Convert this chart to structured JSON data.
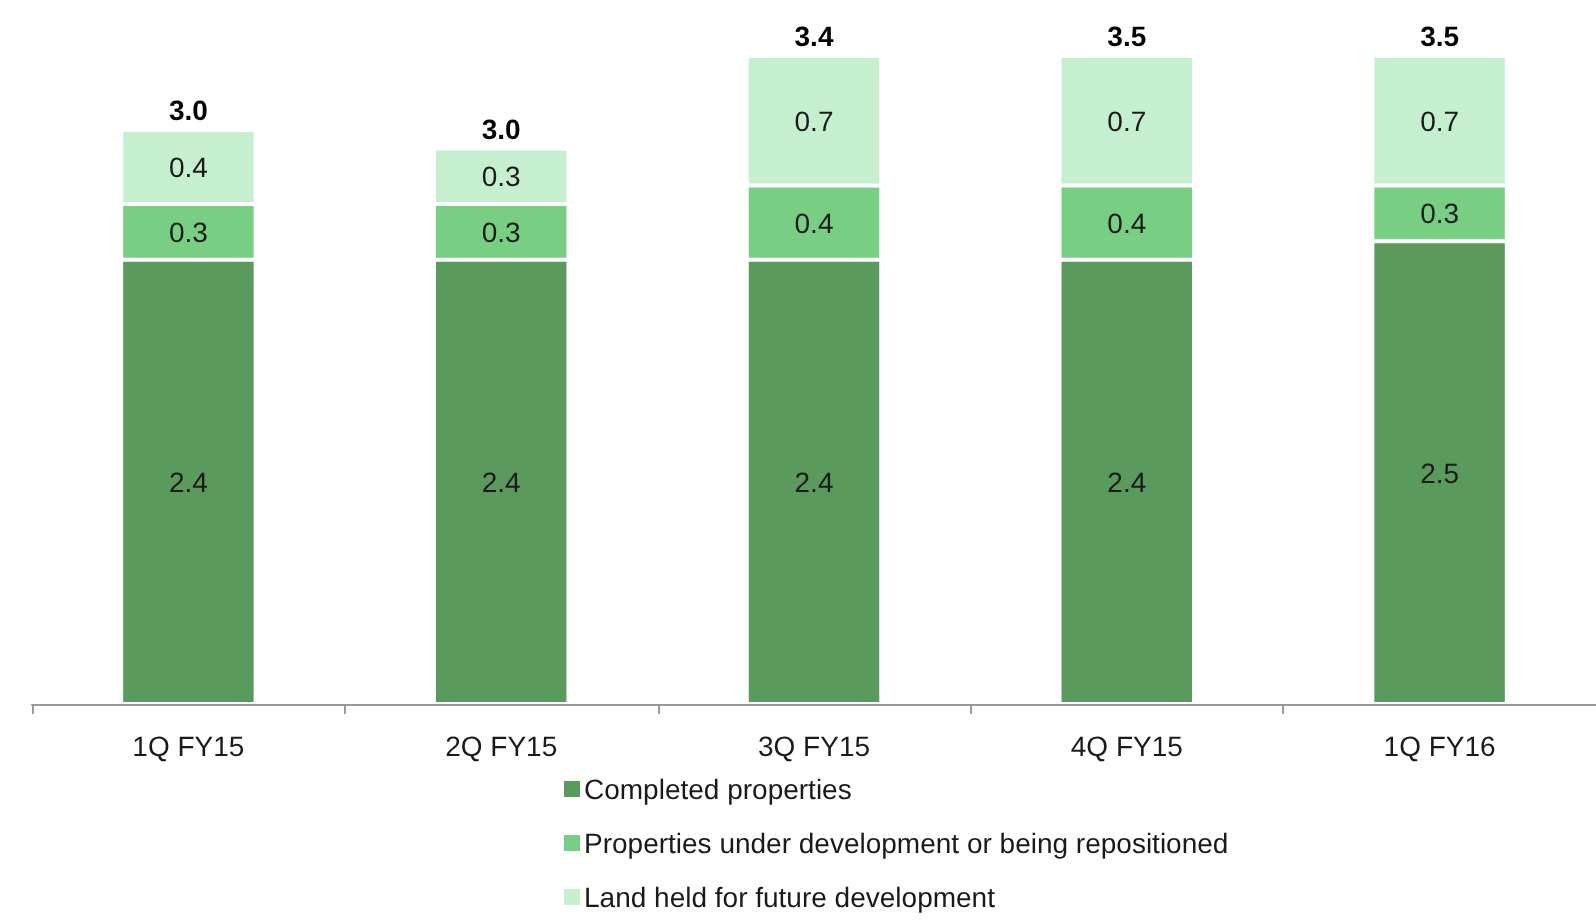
{
  "chart_data": {
    "type": "bar",
    "stacked": true,
    "categories": [
      "1Q FY15",
      "2Q FY15",
      "3Q FY15",
      "4Q FY15",
      "1Q FY16"
    ],
    "series": [
      {
        "name": "Completed properties",
        "color": "#5a9a5d",
        "values": [
          2.4,
          2.4,
          2.4,
          2.4,
          2.5
        ]
      },
      {
        "name": "Properties under development or being repositioned",
        "color": "#78cf84",
        "values": [
          0.3,
          0.3,
          0.4,
          0.4,
          0.3
        ]
      },
      {
        "name": "Land held for future development",
        "color": "#c5efce",
        "values": [
          0.4,
          0.3,
          0.7,
          0.7,
          0.7
        ]
      }
    ],
    "totals": [
      "3.0",
      "3.0",
      "3.4",
      "3.5",
      "3.5"
    ],
    "data_labels": true,
    "legend": "bottom"
  }
}
